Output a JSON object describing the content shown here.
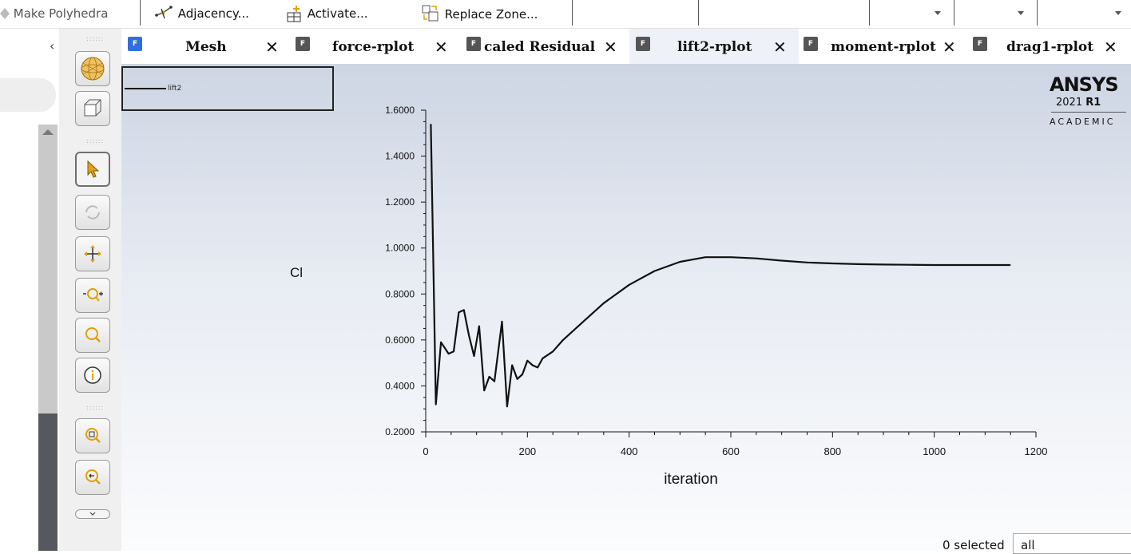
{
  "toolbar": {
    "make_polyhedra": "Make Polyhedra",
    "adjacency": "Adjacency...",
    "activate": "Activate...",
    "replace_zone": "Replace Zone..."
  },
  "tabs": [
    {
      "label": "Mesh",
      "icon_color": "#2f6fe0",
      "active": false
    },
    {
      "label": "force-rplot",
      "icon_color": "#555555",
      "active": false
    },
    {
      "label": "caled Residual",
      "icon_color": "#555555",
      "active": false
    },
    {
      "label": "lift2-rplot",
      "icon_color": "#555555",
      "active": true
    },
    {
      "label": "moment-rplot",
      "icon_color": "#555555",
      "active": false
    },
    {
      "label": "drag1-rplot",
      "icon_color": "#555555",
      "active": false
    }
  ],
  "tab_icon_glyph": "F",
  "logo": {
    "brand": "ANSYS",
    "version": "2021",
    "release": "R1",
    "edition": "ACADEMIC"
  },
  "legend": {
    "label": "lift2"
  },
  "chart_data": {
    "type": "line",
    "xlabel": "iteration",
    "ylabel": "Cl",
    "xlim": [
      0,
      1200
    ],
    "ylim": [
      0.2,
      1.6
    ],
    "xticks": [
      0,
      200,
      400,
      600,
      800,
      1000,
      1200
    ],
    "yticks": [
      "0.2000",
      "0.4000",
      "0.6000",
      "0.8000",
      "1.0000",
      "1.2000",
      "1.4000",
      "1.6000"
    ],
    "series": [
      {
        "name": "lift2",
        "x": [
          10,
          20,
          30,
          45,
          55,
          65,
          75,
          85,
          95,
          105,
          115,
          125,
          135,
          150,
          160,
          170,
          180,
          190,
          200,
          210,
          220,
          230,
          250,
          270,
          300,
          350,
          400,
          450,
          500,
          550,
          600,
          650,
          700,
          750,
          800,
          850,
          900,
          950,
          1000,
          1050,
          1100,
          1150
        ],
        "y": [
          1.54,
          0.32,
          0.59,
          0.54,
          0.55,
          0.72,
          0.73,
          0.62,
          0.53,
          0.66,
          0.38,
          0.44,
          0.42,
          0.68,
          0.31,
          0.49,
          0.43,
          0.45,
          0.51,
          0.49,
          0.48,
          0.52,
          0.55,
          0.6,
          0.66,
          0.76,
          0.84,
          0.9,
          0.94,
          0.96,
          0.96,
          0.955,
          0.945,
          0.937,
          0.933,
          0.93,
          0.928,
          0.927,
          0.926,
          0.926,
          0.926,
          0.926
        ]
      }
    ]
  },
  "status": {
    "selected": "0 selected",
    "filter": "all"
  }
}
